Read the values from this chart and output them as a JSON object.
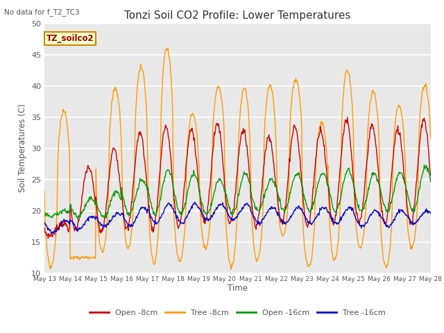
{
  "title": "Tonzi Soil CO2 Profile: Lower Temperatures",
  "subtitle": "No data for f_T2_TC3",
  "ylabel": "Soil Temperatures (C)",
  "xlabel": "Time",
  "ylim": [
    10,
    50
  ],
  "xlim": [
    0,
    15
  ],
  "yticks": [
    10,
    15,
    20,
    25,
    30,
    35,
    40,
    45,
    50
  ],
  "xtick_labels": [
    "May 13",
    "May 14",
    "May 15",
    "May 16",
    "May 17",
    "May 18",
    "May 19",
    "May 20",
    "May 21",
    "May 22",
    "May 23",
    "May 24",
    "May 25",
    "May 26",
    "May 27",
    "May 28"
  ],
  "legend_labels": [
    "Open -8cm",
    "Tree -8cm",
    "Open -16cm",
    "Tree -16cm"
  ],
  "legend_colors": [
    "#cc0000",
    "#ff9900",
    "#009900",
    "#0000cc"
  ],
  "series_colors": [
    "#cc0000",
    "#ff9900",
    "#009900",
    "#0000cc"
  ],
  "annotation_text": "TZ_soilco2",
  "annotation_bg": "#ffffcc",
  "annotation_border": "#cc8800",
  "plot_bg": "#e8e8e8",
  "grid_color": "#ffffff",
  "fig_bg": "#ffffff",
  "title_color": "#333333",
  "subtitle_color": "#555555",
  "tick_color": "#555555",
  "label_color": "#555555"
}
